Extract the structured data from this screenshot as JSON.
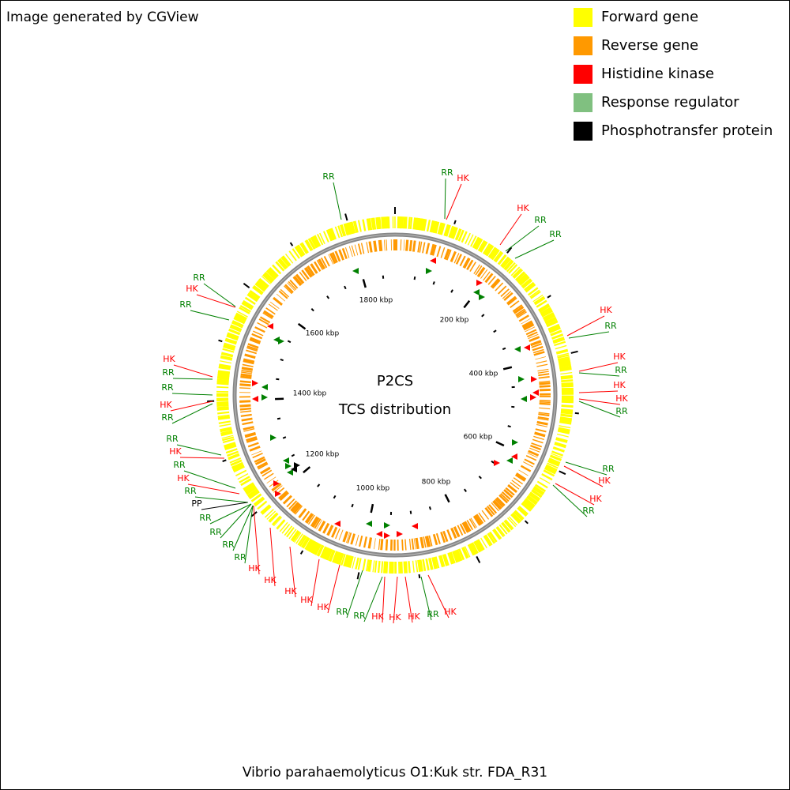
{
  "header": {
    "title": "Image generated by CGView"
  },
  "legend": {
    "items": [
      {
        "label": "Forward gene",
        "color": "#ffff00"
      },
      {
        "label": "Reverse gene",
        "color": "#ff9900"
      },
      {
        "label": "Histidine kinase",
        "color": "#ff0000"
      },
      {
        "label": "Response regulator",
        "color": "#80c080"
      },
      {
        "label": "Phosphotransfer protein",
        "color": "#000000"
      }
    ]
  },
  "map": {
    "title": "P2CS",
    "subtitle": "TCS distribution",
    "tick_labels": [
      "200 kbp",
      "400 kbp",
      "600 kbp",
      "800 kbp",
      "1000 kbp",
      "1200 kbp",
      "1400 kbp",
      "1600 kbp",
      "1800 kbp"
    ],
    "feature_labels": [
      "RR",
      "RR",
      "HK",
      "HK",
      "RR",
      "RR",
      "HK",
      "RR",
      "HK",
      "RR",
      "HK",
      "HK",
      "RR",
      "RR",
      "HK",
      "HK",
      "RR",
      "RR",
      "HK",
      "RR",
      "HK",
      "RR",
      "RR",
      "HK",
      "RR",
      "RR",
      "HK",
      "RR",
      "HK",
      "RR",
      "PP",
      "RR",
      "RR",
      "RR",
      "RR",
      "HK",
      "HK",
      "HK",
      "HK",
      "HK",
      "RR",
      "RR",
      "HK",
      "HK",
      "HK",
      "RR",
      "HK"
    ]
  },
  "footer": {
    "caption": "Vibrio parahaemolyticus O1:Kuk str. FDA_R31"
  }
}
